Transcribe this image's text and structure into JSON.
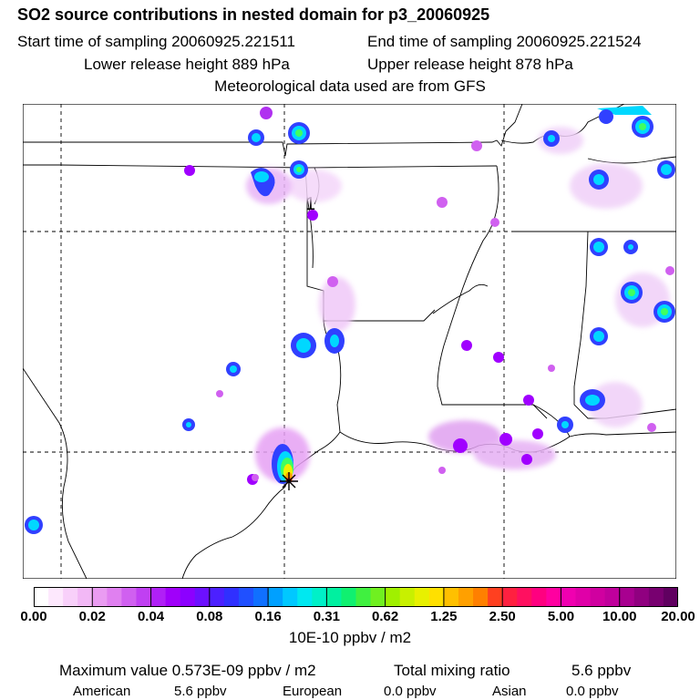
{
  "header": {
    "title": "SO2 source contributions in nested domain for p3_20060925",
    "start_label": "Start time of sampling 20060925.221511",
    "end_label": "End time of sampling 20060925.221524",
    "lower_label": "Lower release height  889 hPa",
    "upper_label": "Upper release height  878 hPa",
    "met_label": "Meteorological data used are from GFS"
  },
  "map": {
    "grid_label": "1",
    "colors": {
      "magenta_light": "#f0c8f8",
      "magenta": "#d070f0",
      "purple": "#a000ff",
      "blue": "#3040ff",
      "cyan": "#00d8ff",
      "green": "#40ff60",
      "yellow": "#f0f000",
      "orange": "#ffa000",
      "red": "#ff2020"
    }
  },
  "colorbar": {
    "colors": [
      "#ffffff",
      "#fde8fd",
      "#f8d0fa",
      "#f2b8f6",
      "#ea9cf2",
      "#e080f0",
      "#d060f0",
      "#c040f2",
      "#b020f6",
      "#a000fa",
      "#8c00ff",
      "#6c10ff",
      "#4c20ff",
      "#3030ff",
      "#2050ff",
      "#1070ff",
      "#00a0ff",
      "#00c8ff",
      "#00e8f0",
      "#00f0c8",
      "#00f0a0",
      "#10f070",
      "#40f040",
      "#70f020",
      "#a0f000",
      "#c8f000",
      "#e8f000",
      "#ffe000",
      "#ffc000",
      "#ffa000",
      "#ff8000",
      "#ff4020",
      "#ff2040",
      "#ff1060",
      "#ff0080",
      "#ff00a0",
      "#f000b0",
      "#e000a8",
      "#d000a0",
      "#c0009c",
      "#a80090",
      "#900080",
      "#780070",
      "#600060"
    ],
    "ticks": [
      "0.00",
      "0.02",
      "0.04",
      "0.08",
      "0.16",
      "0.31",
      "0.62",
      "1.25",
      "2.50",
      "5.00",
      "10.00",
      "20.00"
    ],
    "units": "10E-10 ppbv / m2"
  },
  "footer": {
    "max_label": "Maximum value  0.573E-09 ppbv / m2",
    "total_label": "Total mixing ratio",
    "total_value": "5.6 ppbv",
    "american_label": "American",
    "american_value": "5.6 ppbv",
    "european_label": "European",
    "european_value": "0.0 ppbv",
    "asian_label": "Asian",
    "asian_value": "0.0 ppbv"
  }
}
